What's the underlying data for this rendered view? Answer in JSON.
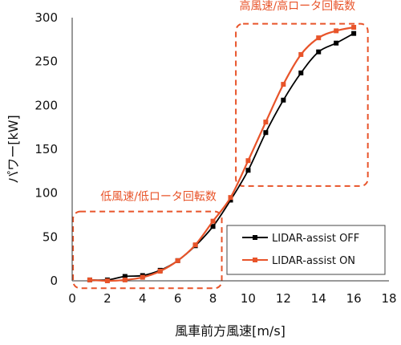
{
  "chart_data": {
    "type": "line",
    "xlabel": "風車前方風速[m/s]",
    "ylabel": "パワー[kW]",
    "xlim": [
      0,
      18
    ],
    "ylim": [
      0,
      300
    ],
    "xticks": [
      0,
      2,
      4,
      6,
      8,
      10,
      12,
      14,
      16,
      18
    ],
    "yticks": [
      0,
      50,
      100,
      150,
      200,
      250,
      300
    ],
    "grid": false,
    "legend_position": "bottom-right",
    "series": [
      {
        "name": "LIDAR-assist OFF",
        "color": "#000000",
        "x": [
          1,
          2,
          3,
          4,
          5,
          6,
          7,
          8,
          9,
          10,
          11,
          12,
          13,
          14,
          15,
          16
        ],
        "y": [
          1,
          1,
          5,
          6,
          12,
          23,
          40,
          62,
          92,
          126,
          169,
          206,
          237,
          261,
          271,
          282
        ]
      },
      {
        "name": "LIDAR-assist ON",
        "color": "#e8542a",
        "x": [
          1,
          2,
          3,
          4,
          5,
          6,
          7,
          8,
          9,
          10,
          11,
          12,
          13,
          14,
          15,
          16
        ],
        "y": [
          1,
          0,
          1,
          4,
          11,
          23,
          41,
          68,
          95,
          137,
          181,
          224,
          258,
          277,
          285,
          289
        ]
      }
    ],
    "annotations": [
      {
        "text": "低風速/低ロータ回転数",
        "color": "#e8542a"
      },
      {
        "text": "高風速/高ロータ回転数",
        "color": "#e8542a"
      }
    ]
  }
}
